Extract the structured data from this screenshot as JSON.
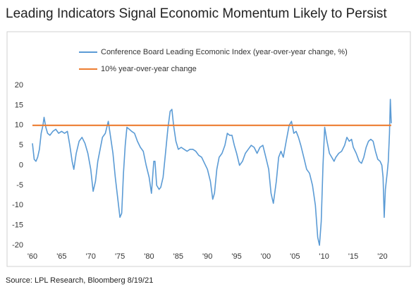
{
  "chart_data": {
    "type": "line",
    "title": "Leading Indicators Signal Economic Momentum Likely to Persist",
    "source": "Source: LPL Research, Bloomberg 8/19/21",
    "xlim": [
      1960,
      2022
    ],
    "ylim": [
      -20,
      20
    ],
    "xticks": [
      {
        "value": 1960,
        "label": "'60"
      },
      {
        "value": 1965,
        "label": "'65"
      },
      {
        "value": 1970,
        "label": "'70"
      },
      {
        "value": 1975,
        "label": "'75"
      },
      {
        "value": 1980,
        "label": "'80"
      },
      {
        "value": 1985,
        "label": "'85"
      },
      {
        "value": 1990,
        "label": "'90"
      },
      {
        "value": 1995,
        "label": "'95"
      },
      {
        "value": 2000,
        "label": "'00"
      },
      {
        "value": 2005,
        "label": "'05"
      },
      {
        "value": 2010,
        "label": "'10"
      },
      {
        "value": 2015,
        "label": "'15"
      },
      {
        "value": 2020,
        "label": "'20"
      }
    ],
    "yticks": [
      20,
      15,
      10,
      5,
      0,
      -5,
      -10,
      -15,
      -20
    ],
    "grid": false,
    "series": [
      {
        "name": "Conference Board Leading Ecomonic Index (year-over-year change, %)",
        "color": "#5b9bd5",
        "x": [
          1960.0,
          1960.3,
          1960.6,
          1960.9,
          1961.2,
          1961.5,
          1961.8,
          1962.0,
          1962.3,
          1962.6,
          1963.0,
          1963.5,
          1964.0,
          1964.5,
          1965.0,
          1965.5,
          1966.0,
          1966.4,
          1966.8,
          1967.1,
          1967.5,
          1968.0,
          1968.5,
          1969.0,
          1969.5,
          1970.0,
          1970.4,
          1970.8,
          1971.2,
          1971.6,
          1972.0,
          1972.5,
          1973.0,
          1973.4,
          1973.8,
          1974.2,
          1974.6,
          1975.0,
          1975.3,
          1975.6,
          1975.9,
          1976.2,
          1976.6,
          1977.0,
          1977.5,
          1978.0,
          1978.5,
          1979.0,
          1979.5,
          1980.0,
          1980.4,
          1980.8,
          1981.0,
          1981.3,
          1981.7,
          1982.0,
          1982.4,
          1982.8,
          1983.2,
          1983.6,
          1983.9,
          1984.2,
          1984.6,
          1985.0,
          1985.5,
          1986.0,
          1986.5,
          1987.0,
          1987.5,
          1988.0,
          1988.5,
          1989.0,
          1989.5,
          1990.0,
          1990.5,
          1990.9,
          1991.2,
          1991.6,
          1992.0,
          1992.5,
          1993.0,
          1993.4,
          1993.8,
          1994.2,
          1994.6,
          1995.0,
          1995.5,
          1996.0,
          1996.5,
          1997.0,
          1997.5,
          1998.0,
          1998.5,
          1999.0,
          1999.5,
          2000.0,
          2000.5,
          2000.9,
          2001.3,
          2001.8,
          2002.2,
          2002.6,
          2003.0,
          2003.5,
          2004.0,
          2004.4,
          2004.8,
          2005.2,
          2005.6,
          2006.0,
          2006.5,
          2007.0,
          2007.5,
          2008.0,
          2008.5,
          2008.9,
          2009.2,
          2009.5,
          2009.8,
          2010.1,
          2010.5,
          2010.9,
          2011.3,
          2011.7,
          2012.0,
          2012.5,
          2013.0,
          2013.5,
          2013.9,
          2014.3,
          2014.7,
          2015.0,
          2015.5,
          2016.0,
          2016.4,
          2016.8,
          2017.2,
          2017.6,
          2018.0,
          2018.4,
          2018.8,
          2019.2,
          2019.6,
          2019.9,
          2020.1,
          2020.3,
          2020.5,
          2020.8,
          2021.0,
          2021.2,
          2021.35,
          2021.5
        ],
        "values": [
          5.5,
          1.5,
          1,
          2,
          4,
          8,
          10,
          12,
          9.5,
          8,
          7.5,
          8.5,
          9,
          8,
          8.5,
          8,
          8.5,
          5,
          1,
          -1,
          3,
          6,
          7,
          5.5,
          3,
          -1,
          -6.5,
          -4,
          1,
          4,
          7,
          8,
          11,
          7,
          3,
          -3,
          -8,
          -13,
          -12,
          -2,
          5,
          9.5,
          9,
          8.5,
          8,
          6,
          4.5,
          3.5,
          0,
          -3,
          -7,
          1,
          1,
          -5,
          -6,
          -5.5,
          -3,
          3,
          9,
          13.5,
          14,
          10,
          6,
          4,
          4.5,
          4,
          3.5,
          4,
          4,
          3.5,
          2.5,
          2,
          0.5,
          -1,
          -4,
          -8.5,
          -7,
          -1,
          2,
          3,
          5,
          8,
          7.5,
          7.5,
          5,
          3,
          0,
          1,
          3,
          4,
          5,
          4.5,
          3,
          4.5,
          5,
          2,
          -1,
          -7,
          -9.5,
          -4,
          2,
          3.5,
          2,
          6,
          10,
          11,
          8,
          8.5,
          7,
          5,
          2,
          -1,
          -2,
          -5,
          -10,
          -18,
          -20,
          -14,
          0,
          9.5,
          6,
          3,
          2,
          1,
          2,
          3,
          3.5,
          5,
          7,
          6,
          6.5,
          4.5,
          3,
          1,
          0.5,
          2,
          4.5,
          6,
          6.5,
          6,
          3.5,
          1.5,
          1,
          0,
          -3,
          -13,
          -6,
          -2,
          1,
          8,
          16.5,
          10.5
        ]
      },
      {
        "name": "10% year-over-year change",
        "color": "#ed7d31",
        "x": [
          1960,
          2021.5
        ],
        "values": [
          10,
          10
        ]
      }
    ]
  }
}
